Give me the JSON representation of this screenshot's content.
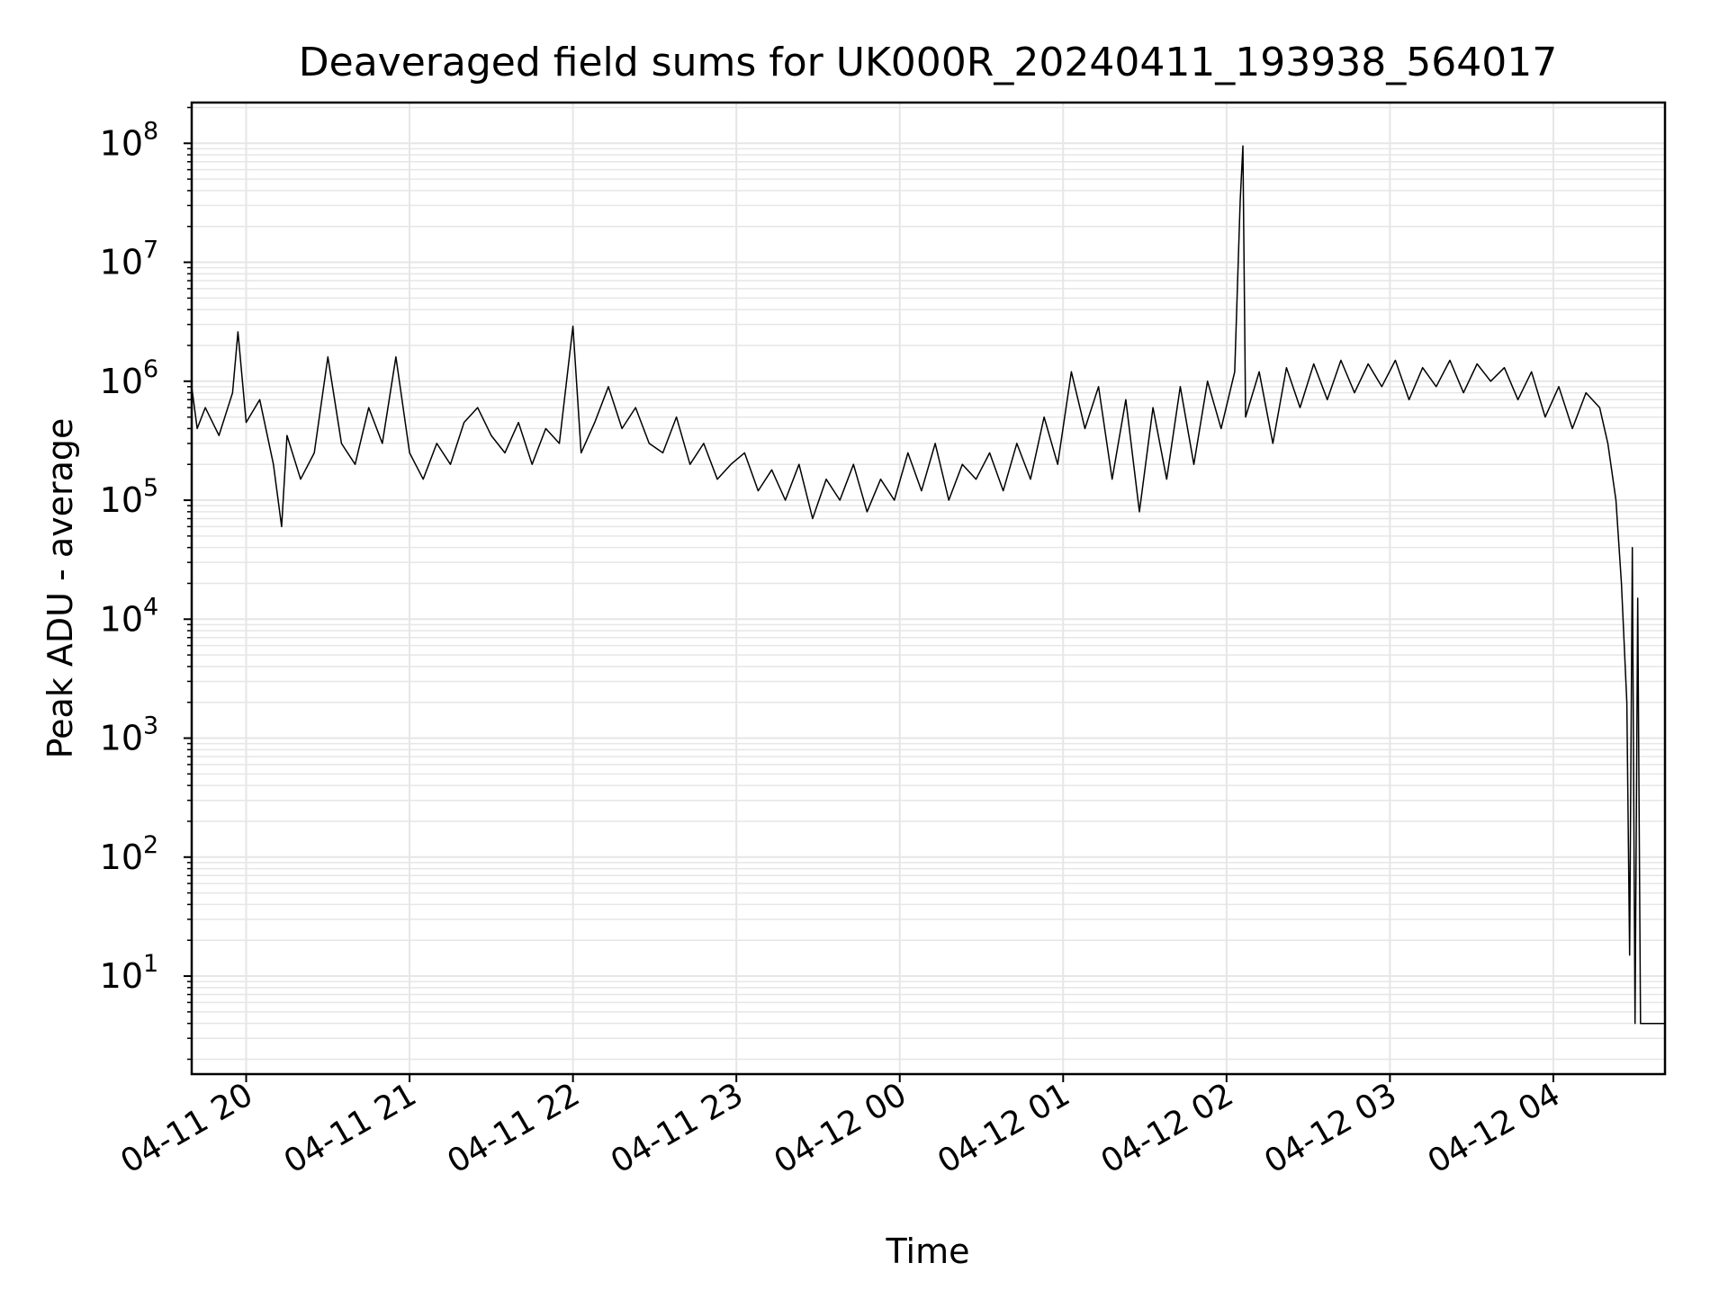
{
  "chart_data": {
    "type": "line",
    "title": "Deaveraged field sums for UK000R_20240411_193938_564017",
    "xlabel": "Time",
    "ylabel": "Peak ADU - average",
    "yscale": "log",
    "xlim": [
      "2024-04-11 19:40",
      "2024-04-12 04:41"
    ],
    "ylim": [
      1.5,
      220000000.0
    ],
    "grid": true,
    "x_ticks": [
      {
        "value": "2024-04-11 20:00",
        "label": "04-11 20"
      },
      {
        "value": "2024-04-11 21:00",
        "label": "04-11 21"
      },
      {
        "value": "2024-04-11 22:00",
        "label": "04-11 22"
      },
      {
        "value": "2024-04-11 23:00",
        "label": "04-11 23"
      },
      {
        "value": "2024-04-12 00:00",
        "label": "04-12 00"
      },
      {
        "value": "2024-04-12 01:00",
        "label": "04-12 01"
      },
      {
        "value": "2024-04-12 02:00",
        "label": "04-12 02"
      },
      {
        "value": "2024-04-12 03:00",
        "label": "04-12 03"
      },
      {
        "value": "2024-04-12 04:00",
        "label": "04-12 04"
      }
    ],
    "y_ticks": [
      {
        "value": 10,
        "base": "10",
        "exp": "1"
      },
      {
        "value": 100,
        "base": "10",
        "exp": "2"
      },
      {
        "value": 1000,
        "base": "10",
        "exp": "3"
      },
      {
        "value": 10000,
        "base": "10",
        "exp": "4"
      },
      {
        "value": 100000,
        "base": "10",
        "exp": "5"
      },
      {
        "value": 1000000,
        "base": "10",
        "exp": "6"
      },
      {
        "value": 10000000,
        "base": "10",
        "exp": "7"
      },
      {
        "value": 100000000,
        "base": "10",
        "exp": "8"
      }
    ],
    "line_color": "#000000",
    "grid_color": "#e6e6e6",
    "series": [
      {
        "points": [
          [
            "2024-04-11 19:40",
            900000
          ],
          [
            "2024-04-11 19:42",
            400000
          ],
          [
            "2024-04-11 19:45",
            600000
          ],
          [
            "2024-04-11 19:50",
            350000
          ],
          [
            "2024-04-11 19:55",
            800000
          ],
          [
            "2024-04-11 19:57",
            2600000
          ],
          [
            "2024-04-11 20:00",
            450000
          ],
          [
            "2024-04-11 20:05",
            700000
          ],
          [
            "2024-04-11 20:10",
            200000
          ],
          [
            "2024-04-11 20:13",
            60000
          ],
          [
            "2024-04-11 20:15",
            350000
          ],
          [
            "2024-04-11 20:20",
            150000
          ],
          [
            "2024-04-11 20:25",
            250000
          ],
          [
            "2024-04-11 20:30",
            1600000
          ],
          [
            "2024-04-11 20:35",
            300000
          ],
          [
            "2024-04-11 20:40",
            200000
          ],
          [
            "2024-04-11 20:45",
            600000
          ],
          [
            "2024-04-11 20:50",
            300000
          ],
          [
            "2024-04-11 20:55",
            1600000
          ],
          [
            "2024-04-11 21:00",
            250000
          ],
          [
            "2024-04-11 21:05",
            150000
          ],
          [
            "2024-04-11 21:10",
            300000
          ],
          [
            "2024-04-11 21:15",
            200000
          ],
          [
            "2024-04-11 21:20",
            450000
          ],
          [
            "2024-04-11 21:25",
            600000
          ],
          [
            "2024-04-11 21:30",
            350000
          ],
          [
            "2024-04-11 21:35",
            250000
          ],
          [
            "2024-04-11 21:40",
            450000
          ],
          [
            "2024-04-11 21:45",
            200000
          ],
          [
            "2024-04-11 21:50",
            400000
          ],
          [
            "2024-04-11 21:55",
            300000
          ],
          [
            "2024-04-11 22:00",
            2900000
          ],
          [
            "2024-04-11 22:03",
            250000
          ],
          [
            "2024-04-11 22:08",
            450000
          ],
          [
            "2024-04-11 22:13",
            900000
          ],
          [
            "2024-04-11 22:18",
            400000
          ],
          [
            "2024-04-11 22:23",
            600000
          ],
          [
            "2024-04-11 22:28",
            300000
          ],
          [
            "2024-04-11 22:33",
            250000
          ],
          [
            "2024-04-11 22:38",
            500000
          ],
          [
            "2024-04-11 22:43",
            200000
          ],
          [
            "2024-04-11 22:48",
            300000
          ],
          [
            "2024-04-11 22:53",
            150000
          ],
          [
            "2024-04-11 22:58",
            200000
          ],
          [
            "2024-04-11 23:03",
            250000
          ],
          [
            "2024-04-11 23:08",
            120000
          ],
          [
            "2024-04-11 23:13",
            180000
          ],
          [
            "2024-04-11 23:18",
            100000
          ],
          [
            "2024-04-11 23:23",
            200000
          ],
          [
            "2024-04-11 23:28",
            70000
          ],
          [
            "2024-04-11 23:33",
            150000
          ],
          [
            "2024-04-11 23:38",
            100000
          ],
          [
            "2024-04-11 23:43",
            200000
          ],
          [
            "2024-04-11 23:48",
            80000
          ],
          [
            "2024-04-11 23:53",
            150000
          ],
          [
            "2024-04-11 23:58",
            100000
          ],
          [
            "2024-04-12 00:03",
            250000
          ],
          [
            "2024-04-12 00:08",
            120000
          ],
          [
            "2024-04-12 00:13",
            300000
          ],
          [
            "2024-04-12 00:18",
            100000
          ],
          [
            "2024-04-12 00:23",
            200000
          ],
          [
            "2024-04-12 00:28",
            150000
          ],
          [
            "2024-04-12 00:33",
            250000
          ],
          [
            "2024-04-12 00:38",
            120000
          ],
          [
            "2024-04-12 00:43",
            300000
          ],
          [
            "2024-04-12 00:48",
            150000
          ],
          [
            "2024-04-12 00:53",
            500000
          ],
          [
            "2024-04-12 00:58",
            200000
          ],
          [
            "2024-04-12 01:03",
            1200000
          ],
          [
            "2024-04-12 01:08",
            400000
          ],
          [
            "2024-04-12 01:13",
            900000
          ],
          [
            "2024-04-12 01:18",
            150000
          ],
          [
            "2024-04-12 01:23",
            700000
          ],
          [
            "2024-04-12 01:28",
            80000
          ],
          [
            "2024-04-12 01:33",
            600000
          ],
          [
            "2024-04-12 01:38",
            150000
          ],
          [
            "2024-04-12 01:43",
            900000
          ],
          [
            "2024-04-12 01:48",
            200000
          ],
          [
            "2024-04-12 01:53",
            1000000
          ],
          [
            "2024-04-12 01:58",
            400000
          ],
          [
            "2024-04-12 02:03",
            1200000
          ],
          [
            "2024-04-12 02:05",
            33000000
          ],
          [
            "2024-04-12 02:06",
            95000000
          ],
          [
            "2024-04-12 02:07",
            500000
          ],
          [
            "2024-04-12 02:12",
            1200000
          ],
          [
            "2024-04-12 02:17",
            300000
          ],
          [
            "2024-04-12 02:22",
            1300000
          ],
          [
            "2024-04-12 02:27",
            600000
          ],
          [
            "2024-04-12 02:32",
            1400000
          ],
          [
            "2024-04-12 02:37",
            700000
          ],
          [
            "2024-04-12 02:42",
            1500000
          ],
          [
            "2024-04-12 02:47",
            800000
          ],
          [
            "2024-04-12 02:52",
            1400000
          ],
          [
            "2024-04-12 02:57",
            900000
          ],
          [
            "2024-04-12 03:02",
            1500000
          ],
          [
            "2024-04-12 03:07",
            700000
          ],
          [
            "2024-04-12 03:12",
            1300000
          ],
          [
            "2024-04-12 03:17",
            900000
          ],
          [
            "2024-04-12 03:22",
            1500000
          ],
          [
            "2024-04-12 03:27",
            800000
          ],
          [
            "2024-04-12 03:32",
            1400000
          ],
          [
            "2024-04-12 03:37",
            1000000
          ],
          [
            "2024-04-12 03:42",
            1300000
          ],
          [
            "2024-04-12 03:47",
            700000
          ],
          [
            "2024-04-12 03:52",
            1200000
          ],
          [
            "2024-04-12 03:57",
            500000
          ],
          [
            "2024-04-12 04:02",
            900000
          ],
          [
            "2024-04-12 04:07",
            400000
          ],
          [
            "2024-04-12 04:12",
            800000
          ],
          [
            "2024-04-12 04:17",
            600000
          ],
          [
            "2024-04-12 04:20",
            300000
          ],
          [
            "2024-04-12 04:23",
            100000
          ],
          [
            "2024-04-12 04:25",
            20000
          ],
          [
            "2024-04-12 04:27",
            2000
          ],
          [
            "2024-04-12 04:28",
            15
          ],
          [
            "2024-04-12 04:29",
            40000
          ],
          [
            "2024-04-12 04:30",
            4
          ],
          [
            "2024-04-12 04:31",
            15000
          ],
          [
            "2024-04-12 04:32",
            4
          ],
          [
            "2024-04-12 04:41",
            4
          ]
        ]
      }
    ]
  }
}
